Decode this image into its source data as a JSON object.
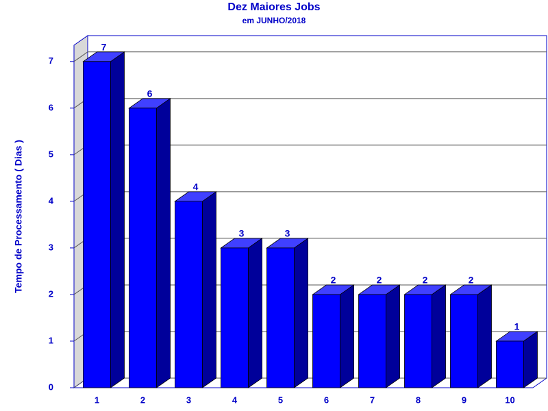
{
  "chart_data": {
    "type": "bar3d",
    "title": "Dez Maiores Jobs",
    "subtitle": "em JUNHO/2018",
    "y_label": "Tempo de Processamento ( Dias )",
    "categories": [
      "1",
      "2",
      "3",
      "4",
      "5",
      "6",
      "7",
      "8",
      "9",
      "10"
    ],
    "values": [
      7,
      6,
      4,
      3,
      3,
      2,
      2,
      2,
      2,
      1
    ],
    "color": "#0000ff",
    "ylim": [
      0,
      7.35
    ],
    "yticks": [
      0,
      1,
      2,
      3,
      4,
      5,
      6,
      7
    ],
    "grid": true
  }
}
